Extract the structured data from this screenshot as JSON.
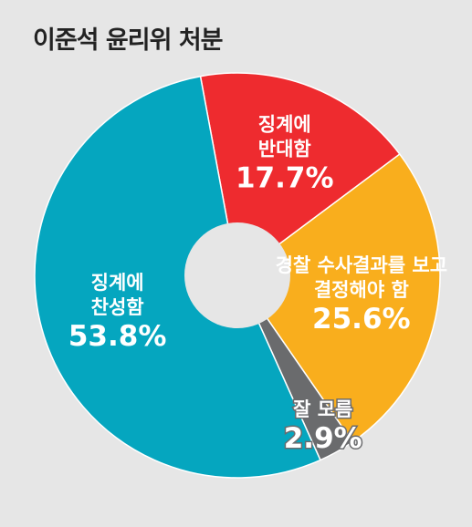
{
  "chart_data": {
    "type": "pie",
    "title": "이준석 윤리위 처분",
    "categories": [
      "징계에 반대함",
      "경찰 수사결과를 보고 결정해야 함",
      "잘 모름",
      "징계에 찬성함"
    ],
    "values": [
      17.7,
      25.6,
      2.9,
      53.8
    ],
    "value_labels": [
      "17.7%",
      "25.6%",
      "2.9%",
      "53.8%"
    ],
    "label_lines": [
      [
        "징계에",
        "반대함"
      ],
      [
        "경찰 수사결과를 보고",
        "결정해야 함"
      ],
      [
        "잘 모름"
      ],
      [
        "징계에",
        "찬성함"
      ]
    ],
    "colors": [
      "#ee2b2f",
      "#f9ae1d",
      "#6a6b6d",
      "#05a6bf"
    ],
    "donut": true,
    "legend": "none"
  }
}
